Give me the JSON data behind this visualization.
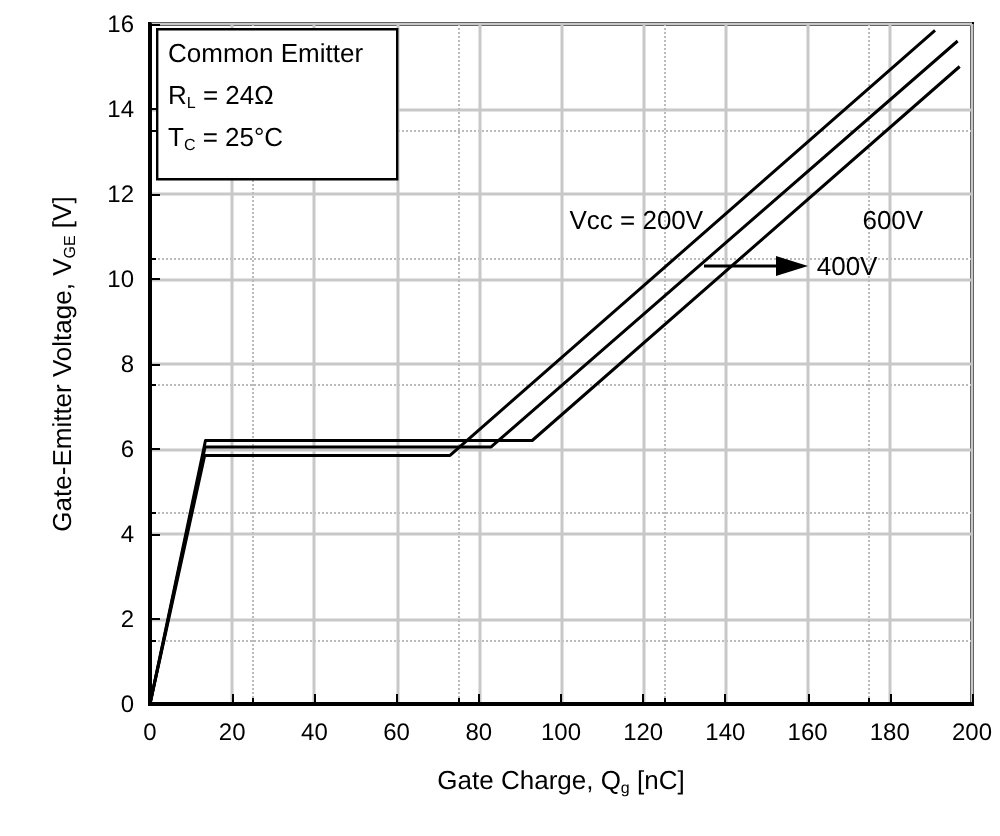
{
  "chart_data": {
    "type": "line",
    "xlabel": "Gate Charge, Q$_{g}$ [nC]",
    "ylabel": "Gate-Emitter Voltage, V$_{GE}$ [V]",
    "xlim": [
      0,
      200
    ],
    "xticks": [
      0,
      20,
      40,
      60,
      80,
      100,
      120,
      140,
      160,
      180,
      200
    ],
    "ylim": [
      0,
      16
    ],
    "yticks": [
      0,
      2,
      4,
      6,
      8,
      10,
      12,
      14,
      16
    ],
    "grid": true,
    "marker": "none",
    "line_style": "solid",
    "series": [
      {
        "name": "Vcc = 200V",
        "color": "#000000",
        "x": [
          0,
          13.3,
          73,
          191
        ],
        "values": [
          0,
          5.85,
          5.85,
          15.85
        ]
      },
      {
        "name": "400V",
        "color": "#000000",
        "x": [
          0,
          13.4,
          83,
          196.5
        ],
        "values": [
          0,
          6.05,
          6.05,
          15.6
        ]
      },
      {
        "name": "600V",
        "color": "#000000",
        "x": [
          0,
          13.5,
          93,
          197
        ],
        "values": [
          0,
          6.2,
          6.2,
          15
        ]
      }
    ],
    "annotations": [
      "Common Emitter",
      "R$_{L}$ = 24Ω",
      "T$_{C}$ = 25°C"
    ]
  }
}
